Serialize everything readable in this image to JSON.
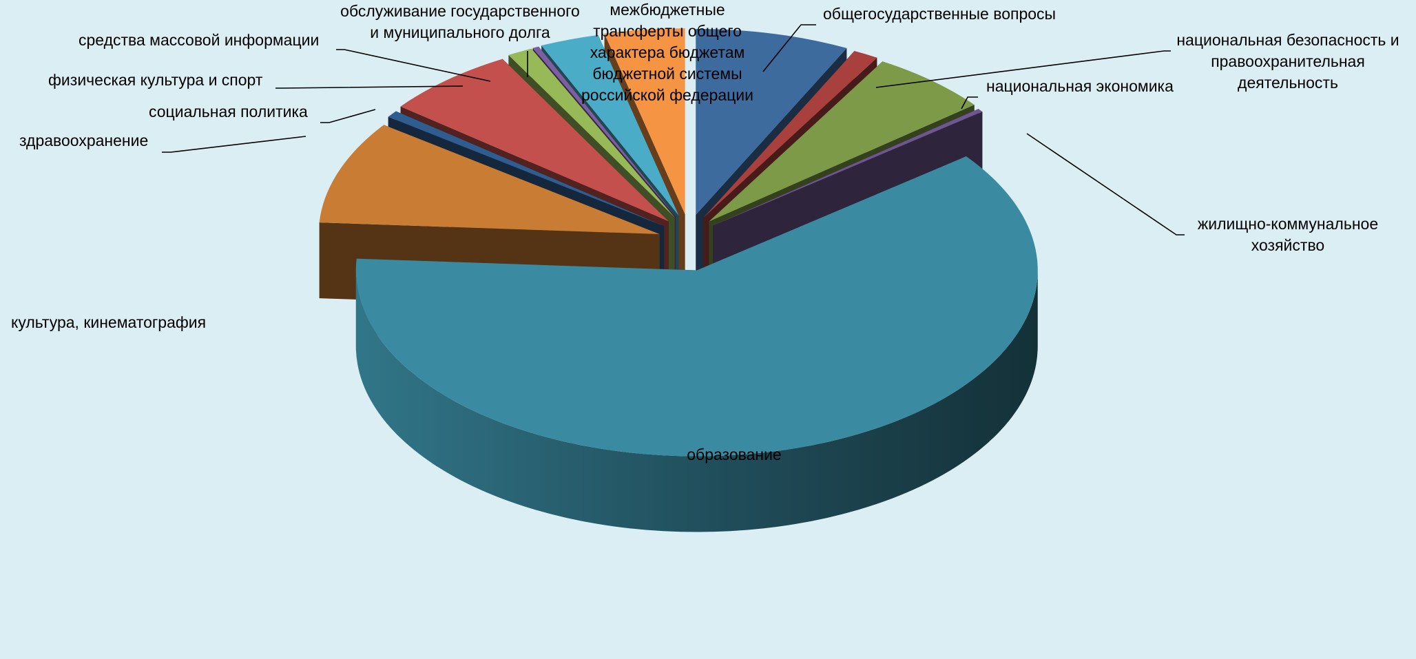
{
  "chart_data": {
    "type": "pie",
    "style": "3d-exploded",
    "title": "",
    "legend": "none",
    "labels_outside": true,
    "slices": [
      {
        "name": "общегосударственные вопросы",
        "value": 7.3,
        "color": "#3e6b9e"
      },
      {
        "name": "национальная безопасность и правоохранительная деятельность",
        "value": 1.2,
        "color": "#a8403d"
      },
      {
        "name": "национальная экономика",
        "value": 5.7,
        "color": "#7c9a47"
      },
      {
        "name": "жилищно-коммунальное хозяйство",
        "value": 0.3,
        "color": "#6e5690"
      },
      {
        "name": "образование",
        "value": 61.5,
        "color": "#3a8ba1"
      },
      {
        "name": "культура, кинематография",
        "value": 9.0,
        "color": "#c97c33"
      },
      {
        "name": "здравоохранение",
        "value": 0.6,
        "color": "#2f5d90"
      },
      {
        "name": "социальная политика",
        "value": 6.3,
        "color": "#c4504e"
      },
      {
        "name": "физическая культура и спорт",
        "value": 1.2,
        "color": "#98b957"
      },
      {
        "name": "средства массовой информации",
        "value": 0.3,
        "color": "#7b5fa0"
      },
      {
        "name": "обслуживание государственного и муниципального долга",
        "value": 2.8,
        "color": "#4aacc6"
      },
      {
        "name": "межбюджетные трансферты общего характера бюджетам бюджетной системы российской федерации",
        "value": 3.8,
        "color": "#f59443"
      }
    ]
  },
  "labels": [
    {
      "slice": 0,
      "lines": [
        "общегосударственные вопросы"
      ]
    },
    {
      "slice": 1,
      "lines": [
        "национальная безопасность и",
        "правоохранительная",
        "деятельность"
      ]
    },
    {
      "slice": 2,
      "lines": [
        "национальная экономика"
      ]
    },
    {
      "slice": 3,
      "lines": [
        "жилищно-коммунальное",
        "хозяйство"
      ]
    },
    {
      "slice": 4,
      "lines": [
        "образование"
      ]
    },
    {
      "slice": 5,
      "lines": [
        "культура, кинематография"
      ]
    },
    {
      "slice": 6,
      "lines": [
        "здравоохранение"
      ]
    },
    {
      "slice": 7,
      "lines": [
        "социальная политика"
      ]
    },
    {
      "slice": 8,
      "lines": [
        "физическая культура и спорт"
      ]
    },
    {
      "slice": 9,
      "lines": [
        "средства массовой информации"
      ]
    },
    {
      "slice": 10,
      "lines": [
        "обслуживание государственного",
        "и муниципального долга"
      ]
    },
    {
      "slice": 11,
      "lines": [
        "межбюджетные",
        "трансферты общего",
        "характера бюджетам",
        "бюджетной системы",
        "российской федерации"
      ]
    }
  ]
}
